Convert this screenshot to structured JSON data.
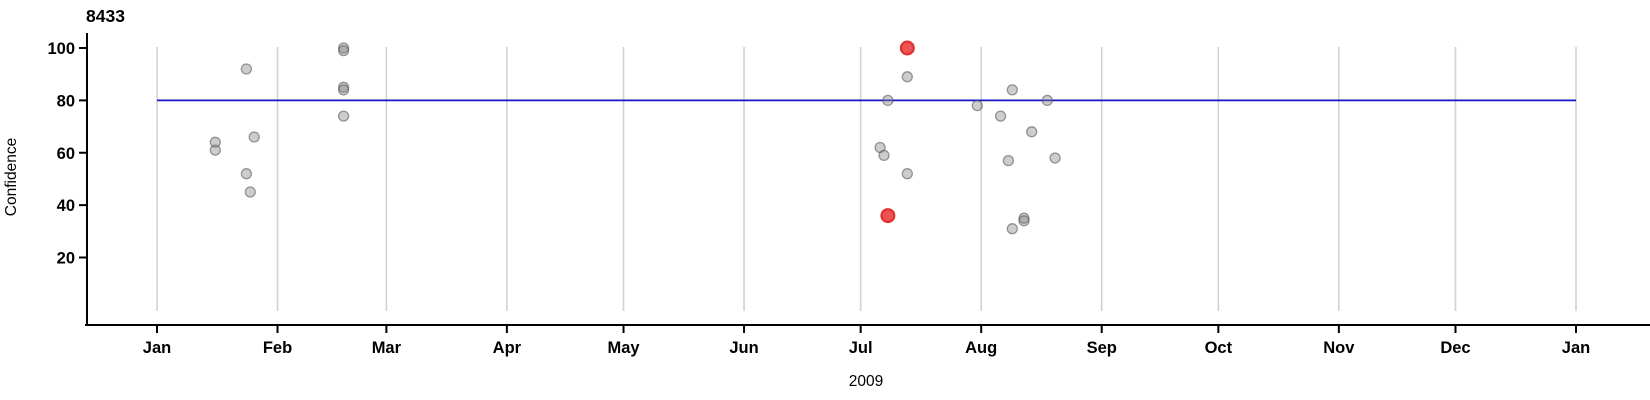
{
  "chart_data": {
    "type": "scatter",
    "title": "8433",
    "xlabel": "2009",
    "ylabel": "Confidence",
    "grid": "vertical-month-gridlines",
    "legend": "none",
    "ylim": [
      0,
      105
    ],
    "y_axis": {
      "ticks": [
        20,
        40,
        60,
        80,
        100
      ]
    },
    "x_axis": {
      "unit": "day-of-year-2009",
      "months": [
        {
          "label": "Jan",
          "day": 0
        },
        {
          "label": "Feb",
          "day": 31
        },
        {
          "label": "Mar",
          "day": 59
        },
        {
          "label": "Apr",
          "day": 90
        },
        {
          "label": "May",
          "day": 120
        },
        {
          "label": "Jun",
          "day": 151
        },
        {
          "label": "Jul",
          "day": 181
        },
        {
          "label": "Aug",
          "day": 212
        },
        {
          "label": "Sep",
          "day": 243
        },
        {
          "label": "Oct",
          "day": 273
        },
        {
          "label": "Nov",
          "day": 304
        },
        {
          "label": "Dec",
          "day": 334
        },
        {
          "label": "Jan",
          "day": 365
        }
      ]
    },
    "reference_line": {
      "value": 80,
      "color": "#1414c8"
    },
    "series_styles": {
      "normal": {
        "fill": "rgba(130,130,130,0.40)",
        "stroke": "rgba(90,90,90,0.60)",
        "radius": 5,
        "stroke_width": 1.3
      },
      "highlight": {
        "fill": "#ee5252",
        "stroke": "#e03030",
        "radius": 6.4,
        "stroke_width": 2.2
      }
    },
    "points": [
      {
        "day": 15,
        "value": 64,
        "series": "normal"
      },
      {
        "day": 15,
        "value": 61,
        "series": "normal"
      },
      {
        "day": 23,
        "value": 92,
        "series": "normal"
      },
      {
        "day": 23,
        "value": 52,
        "series": "normal"
      },
      {
        "day": 24,
        "value": 45,
        "series": "normal"
      },
      {
        "day": 25,
        "value": 66,
        "series": "normal"
      },
      {
        "day": 48,
        "value": 100,
        "series": "normal"
      },
      {
        "day": 48,
        "value": 99,
        "series": "normal"
      },
      {
        "day": 48,
        "value": 85,
        "series": "normal"
      },
      {
        "day": 48,
        "value": 84,
        "series": "normal"
      },
      {
        "day": 48,
        "value": 74,
        "series": "normal"
      },
      {
        "day": 186,
        "value": 62,
        "series": "normal"
      },
      {
        "day": 187,
        "value": 59,
        "series": "normal"
      },
      {
        "day": 188,
        "value": 80,
        "series": "normal"
      },
      {
        "day": 188,
        "value": 36,
        "series": "highlight"
      },
      {
        "day": 193,
        "value": 100,
        "series": "highlight"
      },
      {
        "day": 193,
        "value": 89,
        "series": "normal"
      },
      {
        "day": 193,
        "value": 52,
        "series": "normal"
      },
      {
        "day": 211,
        "value": 78,
        "series": "normal"
      },
      {
        "day": 217,
        "value": 74,
        "series": "normal"
      },
      {
        "day": 219,
        "value": 57,
        "series": "normal"
      },
      {
        "day": 220,
        "value": 84,
        "series": "normal"
      },
      {
        "day": 220,
        "value": 31,
        "series": "normal"
      },
      {
        "day": 223,
        "value": 35,
        "series": "normal"
      },
      {
        "day": 223,
        "value": 34,
        "series": "normal"
      },
      {
        "day": 225,
        "value": 68,
        "series": "normal"
      },
      {
        "day": 229,
        "value": 80,
        "series": "normal"
      },
      {
        "day": 231,
        "value": 58,
        "series": "normal"
      }
    ]
  }
}
